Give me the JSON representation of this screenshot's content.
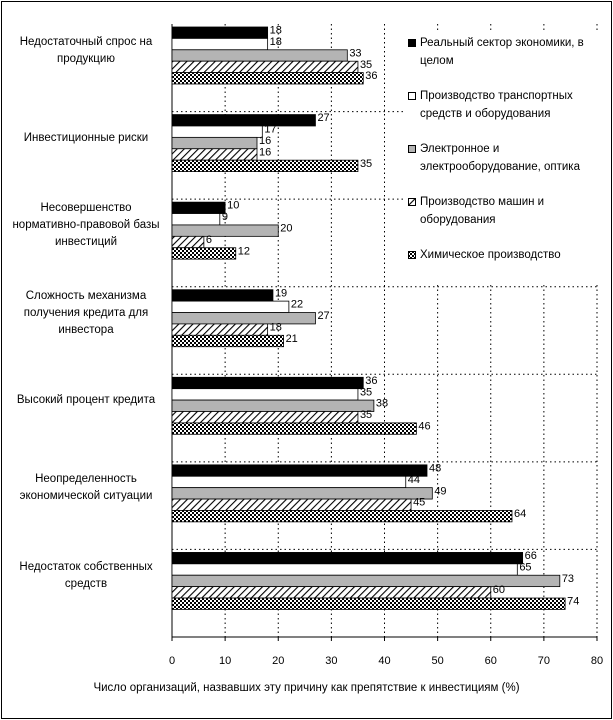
{
  "chart_data": {
    "type": "bar",
    "orientation": "horizontal",
    "x_label": "Число организаций, назвавших эту причину как препятствие к инвестициям (%)",
    "categories": [
      "Недостаточный спрос на продукцию",
      "Инвестиционные риски",
      "Несовершенство нормативно-правовой базы инвестиций",
      "Сложность механизма получения кредита для инвестора",
      "Высокий процент кредита",
      "Неопределенность экономической ситуации",
      "Недостаток собственных средств"
    ],
    "series": [
      {
        "name": "Реальный сектор экономики, в целом",
        "color": "#000000",
        "values": [
          18,
          27,
          10,
          19,
          36,
          48,
          66
        ]
      },
      {
        "name": "Производство транспортных средств и оборудования",
        "color": "#ffffff",
        "values": [
          18,
          17,
          9,
          22,
          35,
          44,
          65
        ]
      },
      {
        "name": "Электронное и электрооборудование, оптика",
        "color": "#b4b4b4",
        "values": [
          33,
          16,
          20,
          27,
          38,
          49,
          73
        ]
      },
      {
        "name": "Производство машин и оборудования",
        "color": "#000000",
        "pattern": "hatch",
        "values": [
          35,
          16,
          6,
          18,
          35,
          45,
          60
        ]
      },
      {
        "name": "Химическое производство",
        "color": "#000000",
        "pattern": "checker",
        "values": [
          36,
          35,
          12,
          21,
          46,
          64,
          74
        ]
      }
    ],
    "xlim": [
      0,
      80
    ],
    "xticks": [
      0,
      10,
      20,
      30,
      40,
      50,
      60,
      70,
      80
    ],
    "grid": true,
    "legend": "upper right"
  }
}
